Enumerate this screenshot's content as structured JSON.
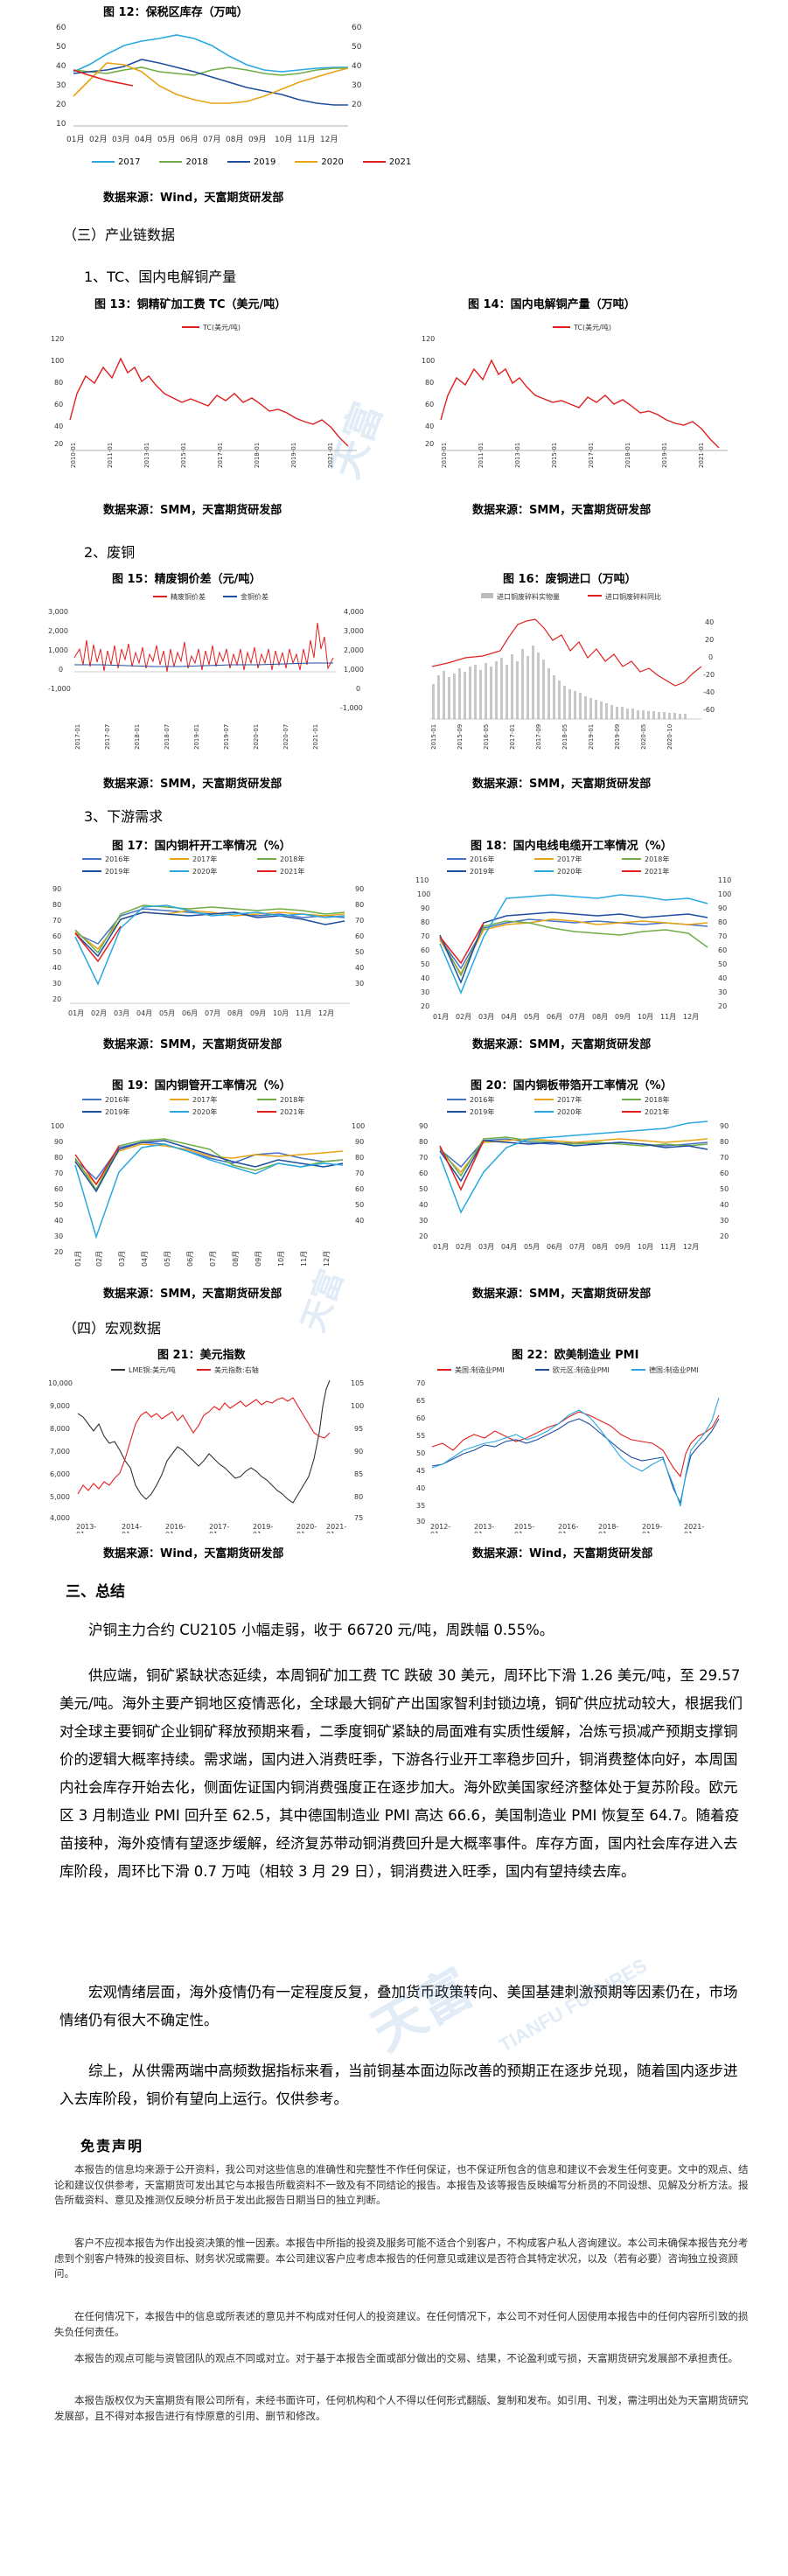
{
  "top": {
    "caption": "图 12：保税区库存（万吨）",
    "legend": [
      "2017",
      "2018",
      "2019",
      "2020",
      "2021"
    ],
    "source": "数据来源：Wind，天富期货研发部"
  },
  "section3": {
    "title": "（三）产业链数据",
    "sub1": "1、TC、国内电解铜产量",
    "sub2": "2、废铜",
    "sub3": "3、下游需求"
  },
  "section4": {
    "title": "（四）宏观数据"
  },
  "figs": {
    "f13": {
      "caption": "图 13：铜精矿加工费 TC（美元/吨）",
      "legend": "TC(美元/吨)",
      "source": "数据来源：SMM，天富期货研发部"
    },
    "f14": {
      "caption": "图 14：国内电解铜产量（万吨）",
      "legend": "TC(美元/吨)",
      "source": "数据来源：SMM，天富期货研发部"
    },
    "f15": {
      "caption": "图 15：精废铜价差（元/吨）",
      "legend1": "精废铜价差",
      "legend2": "金铜价差",
      "source": "数据来源：SMM，天富期货研发部"
    },
    "f16": {
      "caption": "图 16：废铜进口（万吨）",
      "legend1": "进口铜废碎料实物量",
      "legend2": "进口铜废碎料同比",
      "source": "数据来源：SMM，天富期货研发部"
    },
    "f17": {
      "caption": "图 17：国内铜杆开工率情况（%）",
      "source": "数据来源：SMM，天富期货研发部"
    },
    "f18": {
      "caption": "图 18：国内电线电缆开工率情况（%）",
      "source": "数据来源：SMM，天富期货研发部"
    },
    "f19": {
      "caption": "图 19：国内铜管开工率情况（%）",
      "source": "数据来源：SMM，天富期货研发部"
    },
    "f20": {
      "caption": "图 20：国内铜板带箔开工率情况（%）",
      "source": "数据来源：SMM，天富期货研发部"
    },
    "f21": {
      "caption": "图 21：美元指数",
      "legend1": "LME铜:美元/吨",
      "legend2": "美元指数:右轴",
      "source": "数据来源：Wind，天富期货研发部"
    },
    "f22": {
      "caption": "图 22：欧美制造业 PMI",
      "legend1": "美国:制造业PMI",
      "legend2": "欧元区:制造业PMI",
      "legend3": "德国:制造业PMI",
      "source": "数据来源：Wind，天富期货研发部"
    }
  },
  "summary": {
    "title": "三、总结",
    "p1": "沪铜主力合约 CU2105 小幅走弱，收于 66720 元/吨，周跌幅 0.55%。",
    "p2": "供应端，铜矿紧缺状态延续，本周铜矿加工费 TC 跌破 30 美元，周环比下滑 1.26 美元/吨，至 29.57 美元/吨。海外主要产铜地区疫情恶化，全球最大铜矿产出国家智利封锁边境，铜矿供应扰动较大，根据我们对全球主要铜矿企业铜矿释放预期来看，二季度铜矿紧缺的局面难有实质性缓解，冶炼亏损减产预期支撑铜价的逻辑大概率持续。需求端，国内进入消费旺季，下游各行业开工率稳步回升，铜消费整体向好，本周国内社会库存开始去化，侧面佐证国内铜消费强度正在逐步加大。海外欧美国家经济整体处于复苏阶段。欧元区 3 月制造业 PMI 回升至 62.5，其中德国制造业 PMI 高达 66.6，美国制造业 PMI 恢复至 64.7。随着疫苗接种，海外疫情有望逐步缓解，经济复苏带动铜消费回升是大概率事件。库存方面，国内社会库存进入去库阶段，周环比下滑 0.7 万吨（相较 3 月 29 日），铜消费进入旺季，国内有望持续去库。",
    "p3": "宏观情绪层面，海外疫情仍有一定程度反复，叠加货币政策转向、美国基建刺激预期等因素仍在，市场情绪仍有很大不确定性。",
    "p4": "综上，从供需两端中高频数据指标来看，当前铜基本面边际改善的预期正在逐步兑现，随着国内逐步进入去库阶段，铜价有望向上运行。仅供参考。"
  },
  "disclaimer": {
    "title": "免责声明",
    "p1": "本报告的信息均来源于公开资料，我公司对这些信息的准确性和完整性不作任何保证，也不保证所包含的信息和建议不会发生任何变更。文中的观点、结论和建议仅供参考，天富期货可发出其它与本报告所载资料不一致及有不同结论的报告。本报告及该等报告反映编写分析员的不同设想、见解及分析方法。报告所载资料、意见及推测仅反映分析员于发出此报告日期当日的独立判断。",
    "p2": "客户不应视本报告为作出投资决策的惟一因素。本报告中所指的投资及服务可能不适合个别客户，不构成客户私人咨询建议。本公司未确保本报告充分考虑到个别客户特殊的投资目标、财务状况或需要。本公司建议客户应考虑本报告的任何意见或建议是否符合其特定状况，以及（若有必要）咨询独立投资顾问。",
    "p3": "在任何情况下，本报告中的信息或所表述的意见并不构成对任何人的投资建议。在任何情况下，本公司不对任何人因使用本报告中的任何内容所引致的损失负任何责任。",
    "p4": "本报告的观点可能与资管团队的观点不同或对立。对于基于本报告全面或部分做出的交易、结果，不论盈利或亏损，天富期货研究发展部不承担责任。",
    "p5": "本报告版权仅为天富期货有限公司所有，未经书面许可，任何机构和个人不得以任何形式翻版、复制和发布。如引用、刊发，需注明出处为天富期货研究发展部，且不得对本报告进行有悖原意的引用、删节和修改。"
  },
  "watermark": {
    "text1": "天富",
    "text2": "TIANFU FUTURES"
  },
  "colors": {
    "y2016": "#4472c4",
    "y2017": "#e8a317",
    "y2018": "#70ad47",
    "y2019": "#1f4e9e",
    "y2020": "#29a8e0",
    "y2021": "#e02020",
    "tc": "#e02020"
  }
}
